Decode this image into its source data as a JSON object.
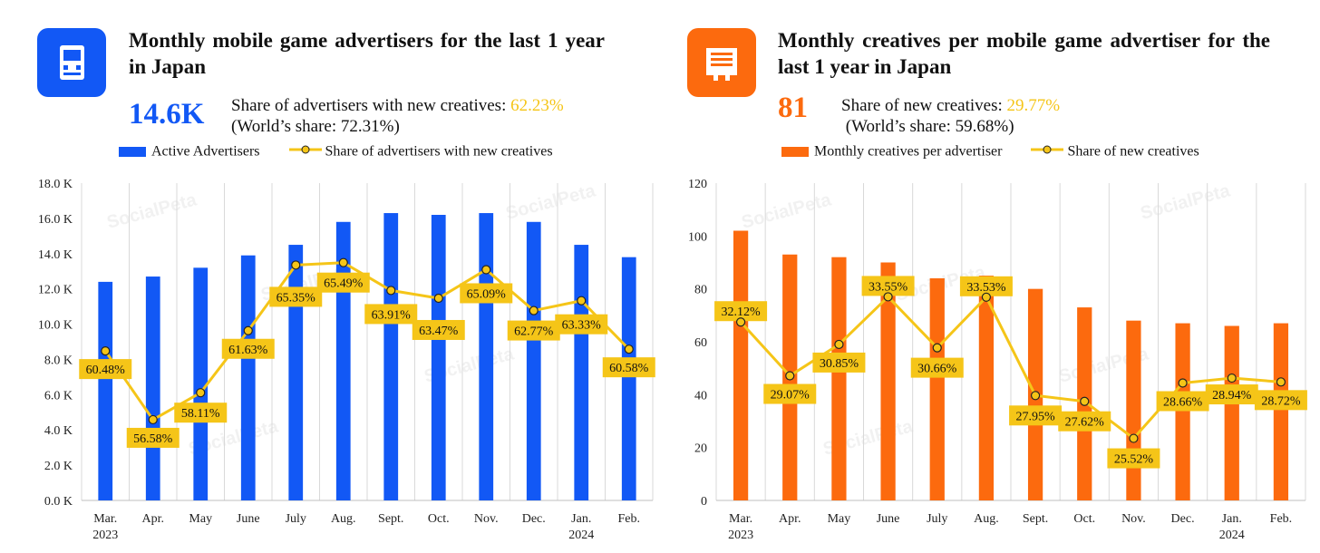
{
  "left": {
    "title": "Monthly mobile game advertisers for the last 1 year in Japan",
    "kpi": "14.6K",
    "share_text": "Share of advertisers with new creatives: ",
    "share_value": "62.23%",
    "world_share": "(World’s share: 72.31%)",
    "icon": "game-console-icon",
    "accent": "#1258f5",
    "legend_bar": "Active Advertisers",
    "legend_line": "Share of advertisers with new creatives"
  },
  "right": {
    "title": "Monthly creatives per mobile game advertiser for the last 1 year in Japan",
    "kpi": "81",
    "share_text": "Share of new creatives: ",
    "share_value": "29.77%",
    "world_share": "(World’s share: 59.68%)",
    "icon": "document-icon",
    "accent": "#fc6a0e",
    "legend_bar": "Monthly creatives per advertiser",
    "legend_line": "Share of new creatives"
  },
  "watermark": "SocialPeta",
  "chart_data": [
    {
      "type": "bar",
      "categories": [
        "Mar.\n2023",
        "Apr.",
        "May",
        "June",
        "July",
        "Aug.",
        "Sept.",
        "Oct.",
        "Nov.",
        "Dec.",
        "Jan.\n2024",
        "Feb."
      ],
      "series": [
        {
          "name": "Active Advertisers",
          "type": "bar",
          "color": "#1258f5",
          "values": [
            12.4,
            12.7,
            13.2,
            13.9,
            14.5,
            15.8,
            16.3,
            16.2,
            16.3,
            15.8,
            14.5,
            13.8
          ]
        },
        {
          "name": "Share of advertisers with new creatives",
          "type": "line",
          "color": "#f5c518",
          "values": [
            60.48,
            56.58,
            58.11,
            61.63,
            65.35,
            65.49,
            63.91,
            63.47,
            65.09,
            62.77,
            63.33,
            60.58
          ],
          "labels": [
            "60.48%",
            "56.58%",
            "58.11%",
            "61.63%",
            "65.35%",
            "65.49%",
            "63.91%",
            "63.47%",
            "65.09%",
            "62.77%",
            "63.33%",
            "60.58%"
          ]
        }
      ],
      "ylim": [
        0,
        18
      ],
      "yticks": [
        "0.0 K",
        "2.0 K",
        "4.0 K",
        "6.0 K",
        "8.0 K",
        "10.0 K",
        "12.0 K",
        "14.0 K",
        "16.0 K",
        "18.0 K"
      ],
      "line_ylim": [
        52,
        70
      ],
      "grid": true
    },
    {
      "type": "bar",
      "categories": [
        "Mar.\n2023",
        "Apr.",
        "May",
        "June",
        "July",
        "Aug.",
        "Sept.",
        "Oct.",
        "Nov.",
        "Dec.",
        "Jan.\n2024",
        "Feb."
      ],
      "series": [
        {
          "name": "Monthly creatives per advertiser",
          "type": "bar",
          "color": "#fc6a0e",
          "values": [
            102,
            93,
            92,
            90,
            84,
            85,
            80,
            73,
            68,
            67,
            66,
            67
          ]
        },
        {
          "name": "Share of new creatives",
          "type": "line",
          "color": "#f5c518",
          "values": [
            32.12,
            29.07,
            30.85,
            33.55,
            30.66,
            33.53,
            27.95,
            27.62,
            25.52,
            28.66,
            28.94,
            28.72
          ],
          "labels": [
            "32.12%",
            "29.07%",
            "30.85%",
            "33.55%",
            "30.66%",
            "33.53%",
            "27.95%",
            "27.62%",
            "25.52%",
            "28.66%",
            "28.94%",
            "28.72%"
          ]
        }
      ],
      "ylim": [
        0,
        120
      ],
      "yticks": [
        "0",
        "20",
        "40",
        "60",
        "80",
        "100",
        "120"
      ],
      "line_ylim": [
        22,
        40
      ],
      "grid": true
    }
  ]
}
